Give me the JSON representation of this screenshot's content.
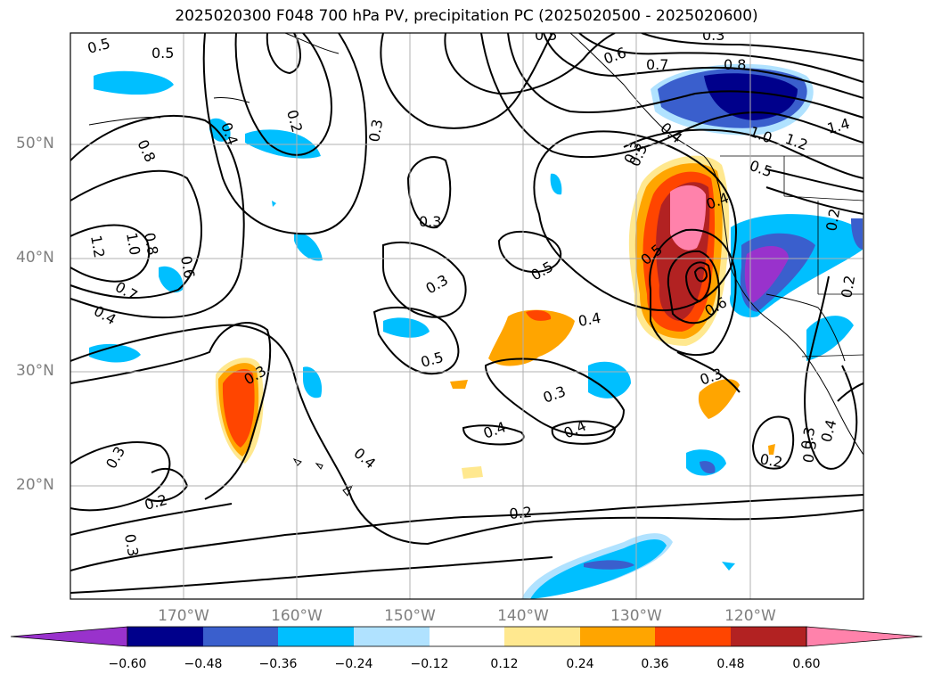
{
  "title": "2025020300 F048 700 hPa PV, precipitation PC (2025020500 - 2025020600)",
  "map": {
    "lat_labels": [
      "50°N",
      "40°N",
      "30°N",
      "20°N"
    ],
    "lon_labels": [
      "170°W",
      "160°W",
      "150°W",
      "140°W",
      "130°W",
      "120°W"
    ],
    "contour_labels": [
      "0.5",
      "0.6",
      "0.7",
      "0.8",
      "1.0",
      "1.2",
      "1.4",
      "0.2",
      "0.3",
      "0.4",
      "0.5",
      "0.3",
      "0.3",
      "0.3",
      "0.5",
      "0.4",
      "0.3",
      "0.5",
      "0.4",
      "0.4",
      "0.2",
      "0.2",
      "0.3",
      "0.3",
      "0.4",
      "0.3",
      "0.2",
      "0.8",
      "1.2",
      "1.0",
      "0.8",
      "0.6",
      "0.7",
      "0.4",
      "0.4",
      "0.3",
      "0.2",
      "0.3",
      "0.3",
      "0.4",
      "0.2",
      "0.5",
      "0.4",
      "0.5",
      "0.3",
      "0.6",
      "0.5",
      "0.5"
    ]
  },
  "colorbar": {
    "ticks": [
      "−0.60",
      "−0.48",
      "−0.36",
      "−0.24",
      "−0.12",
      "0.12",
      "0.24",
      "0.36",
      "0.48",
      "0.60"
    ],
    "colors": [
      "#9932cc",
      "#00008b",
      "#3a5fcd",
      "#00bfff",
      "#b0e2ff",
      "#ffffff",
      "#ffe88f",
      "#ffa500",
      "#ff4500",
      "#b22222",
      "#ff82ab"
    ]
  }
}
